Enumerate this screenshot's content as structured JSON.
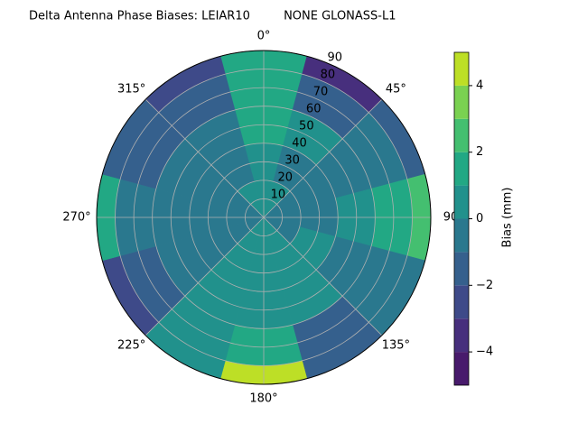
{
  "chart_data": {
    "type": "polar_contour",
    "title": "Delta Antenna Phase Biases: LEIAR10         NONE GLONASS-L1",
    "colorbar_label": "Bias (mm)",
    "theta": [
      0,
      30,
      60,
      90,
      120,
      150,
      180,
      210,
      240,
      270,
      300,
      330
    ],
    "r_edges": [
      0,
      20,
      40,
      60,
      80,
      90
    ],
    "values": [
      [
        0.5,
        0.5,
        -0.5,
        -0.5,
        -0.5,
        0.5,
        0.5,
        0.5,
        -0.5,
        -0.5,
        -0.5,
        0.5
      ],
      [
        0.5,
        -0.5,
        -0.5,
        -0.5,
        0.5,
        0.5,
        0.5,
        0.5,
        -0.5,
        -0.5,
        -0.5,
        -0.5
      ],
      [
        1.5,
        0.5,
        -0.5,
        0.5,
        -0.5,
        0.5,
        0.5,
        0.5,
        -0.5,
        -0.5,
        -0.5,
        -0.5
      ],
      [
        1.5,
        -1.5,
        -0.5,
        1.5,
        -0.5,
        -1.5,
        1.5,
        0.5,
        -1.5,
        -0.5,
        -1.5,
        -1.5
      ],
      [
        1.5,
        -3.5,
        -1.5,
        2.5,
        -0.5,
        -1.5,
        4.5,
        0.5,
        -2.5,
        1.5,
        -1.5,
        -2.5
      ]
    ],
    "levels": [
      -5,
      -4,
      -3,
      -2,
      -1,
      0,
      1,
      2,
      3,
      4,
      5
    ],
    "colors": [
      "#481a6c",
      "#472f7d",
      "#3e4a89",
      "#35608d",
      "#2a788e",
      "#21918c",
      "#22a884",
      "#44bf70",
      "#7ad151",
      "#bddf26"
    ],
    "theta_ticks": [
      {
        "value": 0,
        "label": "0°"
      },
      {
        "value": 45,
        "label": "45°"
      },
      {
        "value": 90,
        "label": "90"
      },
      {
        "value": 135,
        "label": "135°"
      },
      {
        "value": 180,
        "label": "180°"
      },
      {
        "value": 225,
        "label": "225°"
      },
      {
        "value": 270,
        "label": "270°"
      },
      {
        "value": 315,
        "label": "315°"
      }
    ],
    "rlim": [
      0,
      90
    ],
    "rticks": [
      10,
      20,
      30,
      40,
      50,
      60,
      70,
      80,
      90
    ],
    "clim": [
      -5,
      5
    ],
    "cticks": [
      {
        "value": -4,
        "label": "−4"
      },
      {
        "value": -2,
        "label": "−2"
      },
      0,
      2,
      4
    ],
    "grid": true
  }
}
